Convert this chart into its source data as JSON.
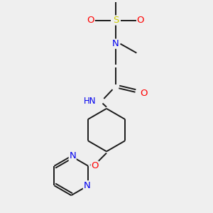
{
  "background_color": "#efefef",
  "bond_color": "#1a1a1a",
  "atom_colors": {
    "S": "#cccc00",
    "O": "#ff0000",
    "N": "#0000ee",
    "H": "#3a8080",
    "C": "#1a1a1a"
  },
  "figsize": [
    3.0,
    3.0
  ],
  "dpi": 100,
  "lw": 1.4,
  "xlim": [
    -2.5,
    2.5
  ],
  "ylim": [
    -4.2,
    3.8
  ]
}
